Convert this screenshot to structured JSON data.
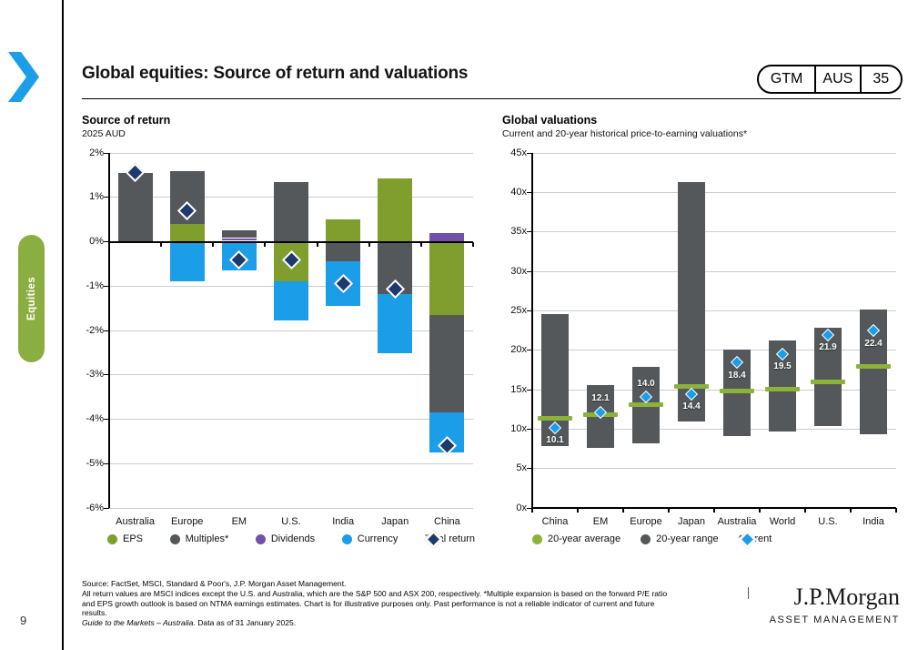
{
  "page": {
    "number": "9",
    "title": "Global equities: Source of return and valuations",
    "badge": {
      "gtm": "GTM",
      "region": "AUS",
      "slide_number": "35"
    },
    "sidebar_tab": "Equities",
    "logo_name": "J.P.Morgan",
    "logo_division": "ASSET MANAGEMENT"
  },
  "colors": {
    "accent_blue": "#1b9de8",
    "dark_gray": "#54585a",
    "olive_green": "#7f9e2e",
    "avg_green": "#8cb23a",
    "purple": "#7451a8",
    "navy": "#1e3a6d",
    "tab_green": "#8bae42",
    "gridline_gray": "#cbcdd0"
  },
  "chart_data": [
    {
      "type": "bar",
      "variant": "stacked",
      "title": "Source of return",
      "subtitle": "2025 AUD",
      "ylim": [
        -6,
        2
      ],
      "grid": true,
      "ytick_suffix": "%",
      "yticks": [
        {
          "value": 2,
          "label": "2%"
        },
        {
          "value": 1,
          "label": "1%"
        },
        {
          "value": 0,
          "label": "0%"
        },
        {
          "value": -1,
          "label": "-1%"
        },
        {
          "value": -2,
          "label": "-2%"
        },
        {
          "value": -3,
          "label": "-3%"
        },
        {
          "value": -4,
          "label": "-4%"
        },
        {
          "value": -5,
          "label": "-5%"
        },
        {
          "value": -6,
          "label": "-6%"
        }
      ],
      "categories": [
        "Australia",
        "Europe",
        "EM",
        "U.S.",
        "India",
        "Japan",
        "China"
      ],
      "component_colors": {
        "eps": "#7f9e2e",
        "multiples": "#54585a",
        "dividends": "#7451a8",
        "currency": "#1b9de8",
        "total": "#1e3a6d"
      },
      "bars": [
        {
          "category": "Australia",
          "segments": [
            {
              "component": "multiples",
              "value": 1.55
            }
          ],
          "total": 1.55
        },
        {
          "category": "Europe",
          "segments": [
            {
              "component": "eps",
              "value": 0.4
            },
            {
              "component": "multiples",
              "value": 1.2
            },
            {
              "component": "currency",
              "value": -0.9
            }
          ],
          "total": 0.7
        },
        {
          "category": "EM",
          "segments": [
            {
              "component": "eps",
              "value": 0.06
            },
            {
              "component": "dividends",
              "value": 0.06
            },
            {
              "component": "multiples",
              "value": 0.16
            },
            {
              "component": "currency",
              "value": -0.65
            }
          ],
          "total": -0.4
        },
        {
          "category": "U.S.",
          "segments": [
            {
              "component": "multiples",
              "value": 1.35
            },
            {
              "component": "eps",
              "value": -0.9
            },
            {
              "component": "currency",
              "value": -0.87
            }
          ],
          "total": -0.42
        },
        {
          "category": "India",
          "segments": [
            {
              "component": "eps",
              "value": 0.5
            },
            {
              "component": "multiples",
              "value": -0.44
            },
            {
              "component": "currency",
              "value": -1.0
            }
          ],
          "total": -0.95
        },
        {
          "category": "Japan",
          "segments": [
            {
              "component": "eps",
              "value": 1.42
            },
            {
              "component": "multiples",
              "value": -1.17
            },
            {
              "component": "currency",
              "value": -1.35
            }
          ],
          "total": -1.07
        },
        {
          "category": "China",
          "segments": [
            {
              "component": "dividends",
              "value": 0.2
            },
            {
              "component": "eps",
              "value": -1.65
            },
            {
              "component": "multiples",
              "value": -2.2
            },
            {
              "component": "currency",
              "value": -0.9
            }
          ],
          "total": -4.6
        }
      ],
      "legend": [
        {
          "label": "EPS",
          "marker": "circle",
          "color": "#7f9e2e"
        },
        {
          "label": "Multiples*",
          "marker": "circle",
          "color": "#54585a"
        },
        {
          "label": "Dividends",
          "marker": "circle",
          "color": "#7451a8"
        },
        {
          "label": "Currency",
          "marker": "circle",
          "color": "#1b9de8"
        },
        {
          "label": "Total return",
          "marker": "diamond",
          "color": "#1e3a6d"
        }
      ]
    },
    {
      "type": "bar",
      "variant": "range",
      "title": "Global valuations",
      "subtitle": "Current and 20-year historical price-to-earning valuations*",
      "ylim": [
        0,
        45
      ],
      "grid": true,
      "ytick_suffix": "x",
      "yticks": [
        {
          "value": 45,
          "label": "45x"
        },
        {
          "value": 40,
          "label": "40x"
        },
        {
          "value": 35,
          "label": "35x"
        },
        {
          "value": 30,
          "label": "30x"
        },
        {
          "value": 25,
          "label": "25x"
        },
        {
          "value": 20,
          "label": "20x"
        },
        {
          "value": 15,
          "label": "15x"
        },
        {
          "value": 10,
          "label": "10x"
        },
        {
          "value": 5,
          "label": "5x"
        },
        {
          "value": 0,
          "label": "0x"
        }
      ],
      "categories": [
        "China",
        "EM",
        "Europe",
        "Japan",
        "Australia",
        "World",
        "U.S.",
        "India"
      ],
      "range_color": "#54585a",
      "average_color": "#8cb23a",
      "current_color": "#1b9de8",
      "bars": [
        {
          "category": "China",
          "range_low": 7.8,
          "range_high": 24.6,
          "average": 11.4,
          "current": 10.1,
          "label": "10.1",
          "label_position": "below"
        },
        {
          "category": "EM",
          "range_low": 7.6,
          "range_high": 15.6,
          "average": 11.8,
          "current": 12.1,
          "label": "12.1",
          "label_position": "above"
        },
        {
          "category": "Europe",
          "range_low": 8.2,
          "range_high": 17.9,
          "average": 13.1,
          "current": 14.0,
          "label": "14.0",
          "label_position": "above"
        },
        {
          "category": "Japan",
          "range_low": 11.0,
          "range_high": 41.3,
          "average": 15.4,
          "current": 14.4,
          "label": "14.4",
          "label_position": "below"
        },
        {
          "category": "Australia",
          "range_low": 9.1,
          "range_high": 20.1,
          "average": 14.8,
          "current": 18.4,
          "label": "18.4",
          "label_position": "below"
        },
        {
          "category": "World",
          "range_low": 9.7,
          "range_high": 21.2,
          "average": 15.1,
          "current": 19.5,
          "label": "19.5",
          "label_position": "below"
        },
        {
          "category": "U.S.",
          "range_low": 10.4,
          "range_high": 22.9,
          "average": 16.0,
          "current": 21.9,
          "label": "21.9",
          "label_position": "below"
        },
        {
          "category": "India",
          "range_low": 9.3,
          "range_high": 25.1,
          "average": 18.0,
          "current": 22.4,
          "label": "22.4",
          "label_position": "below"
        }
      ],
      "legend": [
        {
          "label": "20-year average",
          "marker": "circle",
          "color": "#8cb23a"
        },
        {
          "label": "20-year range",
          "marker": "circle",
          "color": "#54585a"
        },
        {
          "label": "Current",
          "marker": "diamond",
          "color": "#1b9de8"
        }
      ]
    }
  ],
  "footnotes": {
    "lines": [
      "Source: FactSet, MSCI, Standard & Poor's, J.P. Morgan Asset Management.",
      "All return values are MSCI indices except the U.S. and Australia, which are the S&P 500 and ASX 200, respectively. *Multiple expansion is based on the forward P/E ratio",
      "and EPS growth outlook is based on NTMA earnings estimates. Chart is for illustrative purposes only. Past performance is not a reliable indicator of current and future",
      "results."
    ],
    "italic_lead": "Guide to the Markets – Australia.",
    "regular_tail": " Data as of 31 January 2025."
  }
}
